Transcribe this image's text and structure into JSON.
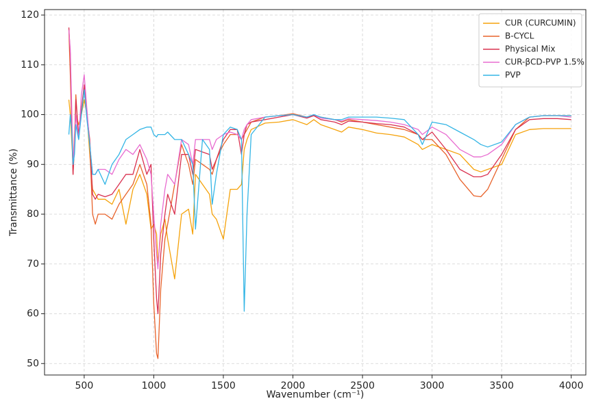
{
  "chart_data": {
    "type": "line",
    "xlabel": "Wavenumber (cm⁻¹)",
    "ylabel": "Transmittance (%)",
    "xlim": [
      215,
      4105
    ],
    "ylim": [
      47.7,
      121.1
    ],
    "xticks": [
      500,
      1000,
      1500,
      2000,
      2500,
      3000,
      3500,
      4000
    ],
    "yticks": [
      50,
      60,
      70,
      80,
      90,
      100,
      110,
      120
    ],
    "grid": true,
    "legend": "upper right",
    "x": [
      390,
      400,
      410,
      420,
      430,
      440,
      460,
      480,
      500,
      520,
      540,
      560,
      580,
      600,
      650,
      700,
      750,
      800,
      850,
      900,
      950,
      980,
      1000,
      1020,
      1030,
      1050,
      1080,
      1100,
      1150,
      1200,
      1250,
      1280,
      1300,
      1350,
      1400,
      1420,
      1450,
      1500,
      1550,
      1600,
      1630,
      1650,
      1670,
      1700,
      1800,
      1900,
      2000,
      2100,
      2150,
      2200,
      2300,
      2350,
      2400,
      2500,
      2600,
      2700,
      2800,
      2900,
      2930,
      3000,
      3100,
      3200,
      3300,
      3350,
      3400,
      3500,
      3600,
      3700,
      3800,
      3900,
      4000
    ],
    "series": [
      {
        "name": "CUR (CURCUMIN)",
        "color": "#f5a20a",
        "values": [
          103,
          100,
          95,
          90,
          96,
          100,
          98,
          100,
          103,
          100,
          92,
          85,
          84,
          83,
          83,
          82,
          85,
          78,
          85,
          88,
          84,
          77,
          78,
          76,
          70,
          76,
          79,
          75,
          67,
          80,
          81,
          76,
          88,
          86,
          84,
          80,
          79,
          75,
          85,
          85,
          86,
          93,
          95,
          97,
          98.3,
          98.5,
          99,
          98,
          99,
          98,
          97,
          96.5,
          97.5,
          97,
          96.3,
          96,
          95.5,
          94,
          93,
          94,
          93,
          92,
          89,
          88.5,
          89,
          90,
          96,
          97,
          97.2,
          97.2,
          97.2
        ]
      },
      {
        "name": "B-CYCL",
        "color": "#e8622a",
        "values": [
          117,
          108,
          98,
          88,
          94,
          104,
          95,
          101,
          105,
          100,
          94,
          80,
          78,
          80,
          80,
          79,
          82,
          84,
          86,
          90,
          86,
          78,
          62,
          52,
          51,
          65,
          75,
          78,
          86,
          94,
          90,
          86,
          91,
          90,
          89,
          88,
          91,
          94,
          96,
          96,
          95,
          96,
          97,
          98.5,
          99.5,
          99.8,
          100.2,
          99.5,
          99.8,
          99.5,
          99,
          98.5,
          99,
          98.5,
          98,
          97.5,
          97,
          96,
          95,
          95,
          92,
          87,
          83.7,
          83.5,
          85,
          91,
          97,
          99.5,
          99.8,
          99.8,
          99.8
        ]
      },
      {
        "name": "Physical Mix",
        "color": "#d9304f",
        "values": [
          117.5,
          112,
          100,
          88,
          94,
          103,
          96,
          101,
          106,
          100,
          95,
          84,
          83,
          84,
          83.5,
          84,
          86,
          88,
          88,
          93,
          88,
          90,
          75,
          63,
          60,
          72,
          80,
          84,
          80,
          92,
          92,
          88,
          93,
          92.5,
          92,
          89,
          91,
          95,
          97,
          97,
          92,
          96,
          98,
          98.5,
          99,
          99.5,
          100,
          99.3,
          99.8,
          99,
          98.5,
          98,
          98.7,
          98.5,
          98.2,
          98,
          97.5,
          96,
          95,
          96.5,
          93,
          89,
          87.5,
          87.5,
          88,
          92,
          97,
          99,
          99.2,
          99.2,
          99
        ]
      },
      {
        "name": "CUR-βCD-PVP 1.5%",
        "color": "#e86bd0",
        "values": [
          117,
          113,
          102,
          90,
          95,
          100,
          95,
          104,
          108,
          101,
          94,
          88,
          88,
          89,
          89,
          88,
          91,
          93,
          92,
          94,
          91,
          88,
          80,
          72,
          69,
          78,
          85,
          88,
          86,
          95,
          94,
          90,
          95,
          95,
          95,
          93,
          95,
          96,
          96.5,
          96,
          95,
          97,
          98,
          99,
          99.5,
          99.8,
          100,
          99.5,
          100,
          99.3,
          99,
          98.7,
          99.2,
          99,
          98.8,
          98.5,
          98,
          97,
          96,
          97.5,
          96,
          93,
          91.5,
          91.5,
          92,
          94,
          98,
          99.5,
          99.8,
          99.8,
          99.5
        ]
      },
      {
        "name": "PVP",
        "color": "#33b5e5",
        "values": [
          96,
          100,
          97,
          90,
          92,
          98,
          95,
          100,
          105,
          99,
          94,
          88,
          88,
          89,
          86,
          90,
          92,
          95,
          96,
          97,
          97.5,
          97.5,
          96,
          95.5,
          96,
          96,
          96,
          96.5,
          95,
          95,
          92,
          90,
          77,
          95,
          93,
          82,
          88,
          96,
          97.5,
          97,
          95,
          60.5,
          80,
          96,
          99.5,
          99.8,
          100,
          99.5,
          100,
          99.5,
          99,
          99,
          99.5,
          99.5,
          99.5,
          99.3,
          99,
          96,
          94,
          98.5,
          98,
          96.5,
          95,
          94,
          93.5,
          94.5,
          98,
          99.5,
          99.8,
          99.8,
          99.8
        ]
      }
    ]
  }
}
